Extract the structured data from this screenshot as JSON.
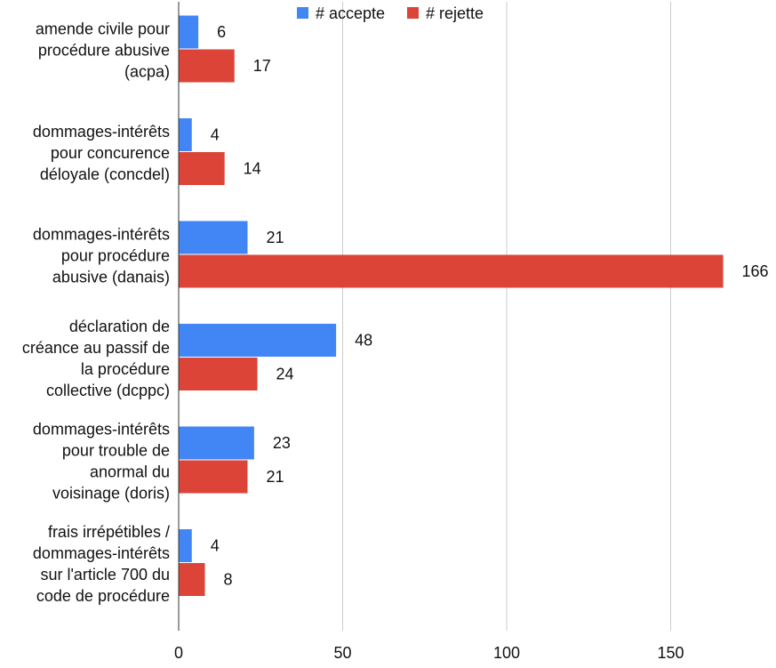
{
  "chart_data": {
    "type": "bar",
    "orientation": "horizontal",
    "categories": [
      [
        "amende civile pour",
        "procédure abusive",
        "(acpa)"
      ],
      [
        "dommages-intérêts",
        "pour concurence",
        "déloyale (concdel)"
      ],
      [
        "dommages-intérêts",
        "pour procédure",
        "abusive (danais)"
      ],
      [
        "déclaration de",
        "créance au passif de",
        "la procédure",
        "collective (dcppc)"
      ],
      [
        "dommages-intérêts",
        "pour trouble de",
        "anormal du",
        "voisinage (doris)"
      ],
      [
        "frais irrépétibles /",
        "dommages-intérêts",
        "sur l'article 700 du",
        "code de procédure"
      ]
    ],
    "series": [
      {
        "name": "# accepte",
        "color": "#4285f4",
        "values": [
          6,
          4,
          21,
          48,
          23,
          4
        ]
      },
      {
        "name": "# rejette",
        "color": "#db4437",
        "values": [
          17,
          14,
          166,
          24,
          21,
          8
        ]
      }
    ],
    "xlim": [
      0,
      175
    ],
    "xticks": [
      0,
      50,
      100,
      150
    ],
    "grid": true,
    "legend_position": "top"
  }
}
